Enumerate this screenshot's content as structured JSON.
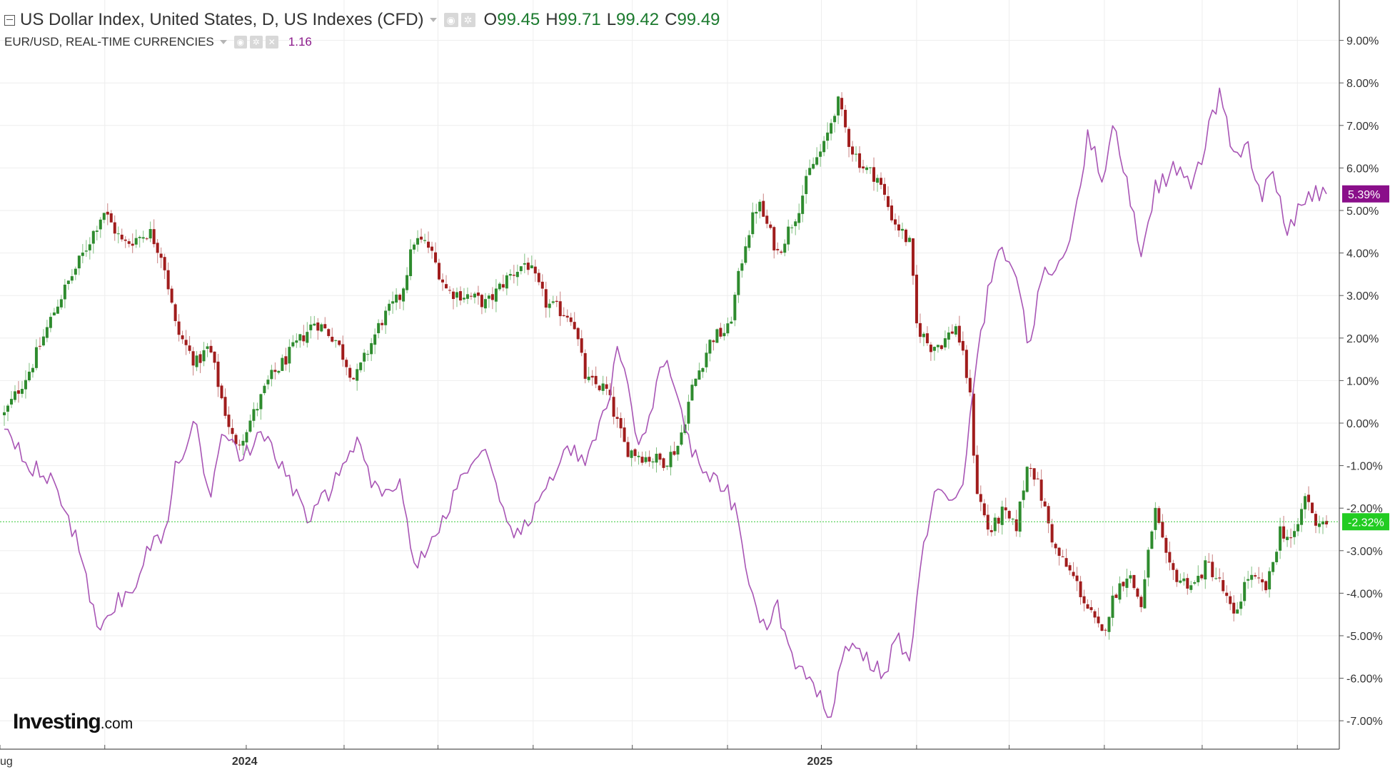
{
  "legend": {
    "main_title": "US Dollar Index, United States, D, US Indexes (CFD)",
    "ohlc": [
      {
        "key": "O",
        "value": "99.45"
      },
      {
        "key": "H",
        "value": "99.71"
      },
      {
        "key": "L",
        "value": "99.42"
      },
      {
        "key": "C",
        "value": "99.49"
      }
    ],
    "compare_title": "EUR/USD, REAL-TIME CURRENCIES",
    "compare_value": "1.16"
  },
  "logo": {
    "main": "Investing",
    "suffix": ".com"
  },
  "colors": {
    "up": "#2e8b2e",
    "down": "#a01c1c",
    "compare_line": "#a855b5",
    "grid": "#eeeeee",
    "current_line": "#39c939",
    "dxy_badge": "#22cc22",
    "eur_badge": "#8a0f8a",
    "axis_text": "#333333"
  },
  "chart_data": {
    "type": "candlestick+line",
    "y_axis": {
      "unit": "percent change",
      "ylim": [
        -7.5,
        9.5
      ],
      "ticks": [
        "9.00%",
        "8.00%",
        "7.00%",
        "6.00%",
        "5.00%",
        "4.00%",
        "3.00%",
        "2.00%",
        "1.00%",
        "0.00%",
        "-1.00%",
        "-2.00%",
        "-3.00%",
        "-4.00%",
        "-5.00%",
        "-6.00%",
        "-7.00%"
      ],
      "tick_values": [
        9,
        8,
        7,
        6,
        5,
        4,
        3,
        2,
        1,
        0,
        -1,
        -2,
        -3,
        -4,
        -5,
        -6,
        -7
      ]
    },
    "x_axis": {
      "labels": [
        {
          "text": "ug",
          "t": 0
        },
        {
          "text": "2024",
          "t": 0.183
        },
        {
          "text": "2025",
          "t": 0.618
        }
      ],
      "month_ticks": [
        0.076,
        0.257,
        0.328,
        0.4,
        0.475,
        0.547,
        0.618,
        0.69,
        0.76,
        0.832,
        0.906,
        0.978
      ]
    },
    "series": [
      {
        "name": "US Dollar Index, United States, D, US Indexes (CFD)",
        "style": "candlestick",
        "current_value_label": "-2.32%",
        "keypoints": [
          [
            0,
            0.2
          ],
          [
            0.02,
            1.3
          ],
          [
            0.04,
            2.8
          ],
          [
            0.06,
            4.0
          ],
          [
            0.075,
            5.0
          ],
          [
            0.09,
            4.2
          ],
          [
            0.11,
            4.5
          ],
          [
            0.12,
            3.9
          ],
          [
            0.13,
            2.2
          ],
          [
            0.145,
            1.4
          ],
          [
            0.155,
            1.8
          ],
          [
            0.165,
            0.5
          ],
          [
            0.175,
            -0.6
          ],
          [
            0.19,
            0.3
          ],
          [
            0.2,
            1.0
          ],
          [
            0.215,
            1.6
          ],
          [
            0.235,
            2.4
          ],
          [
            0.25,
            2.0
          ],
          [
            0.265,
            1.0
          ],
          [
            0.285,
            2.4
          ],
          [
            0.3,
            3.0
          ],
          [
            0.31,
            4.3
          ],
          [
            0.32,
            4.2
          ],
          [
            0.335,
            3.1
          ],
          [
            0.35,
            3.0
          ],
          [
            0.365,
            2.8
          ],
          [
            0.38,
            3.4
          ],
          [
            0.395,
            3.8
          ],
          [
            0.41,
            2.8
          ],
          [
            0.43,
            2.5
          ],
          [
            0.44,
            1.0
          ],
          [
            0.455,
            0.8
          ],
          [
            0.47,
            -0.6
          ],
          [
            0.485,
            -0.8
          ],
          [
            0.5,
            -0.9
          ],
          [
            0.51,
            -0.5
          ],
          [
            0.52,
            0.8
          ],
          [
            0.535,
            2.0
          ],
          [
            0.548,
            2.2
          ],
          [
            0.56,
            4.2
          ],
          [
            0.57,
            5.2
          ],
          [
            0.585,
            4.0
          ],
          [
            0.6,
            5.0
          ],
          [
            0.61,
            6.0
          ],
          [
            0.62,
            6.5
          ],
          [
            0.63,
            7.6
          ],
          [
            0.64,
            6.5
          ],
          [
            0.65,
            6.0
          ],
          [
            0.66,
            5.8
          ],
          [
            0.672,
            4.8
          ],
          [
            0.685,
            4.2
          ],
          [
            0.69,
            2.3
          ],
          [
            0.7,
            1.8
          ],
          [
            0.71,
            1.9
          ],
          [
            0.72,
            2.3
          ],
          [
            0.73,
            0.8
          ],
          [
            0.735,
            -1.5
          ],
          [
            0.745,
            -2.6
          ],
          [
            0.755,
            -2.1
          ],
          [
            0.765,
            -2.5
          ],
          [
            0.775,
            -0.8
          ],
          [
            0.785,
            -1.8
          ],
          [
            0.795,
            -3.0
          ],
          [
            0.81,
            -3.7
          ],
          [
            0.82,
            -4.4
          ],
          [
            0.83,
            -5.0
          ],
          [
            0.84,
            -4.0
          ],
          [
            0.85,
            -3.5
          ],
          [
            0.86,
            -4.3
          ],
          [
            0.87,
            -2.0
          ],
          [
            0.88,
            -3.4
          ],
          [
            0.89,
            -3.7
          ],
          [
            0.9,
            -3.8
          ],
          [
            0.91,
            -3.3
          ],
          [
            0.92,
            -3.8
          ],
          [
            0.93,
            -4.6
          ],
          [
            0.94,
            -3.6
          ],
          [
            0.955,
            -3.9
          ],
          [
            0.965,
            -2.5
          ],
          [
            0.975,
            -2.8
          ],
          [
            0.985,
            -1.6
          ],
          [
            0.99,
            -2.3
          ]
        ]
      },
      {
        "name": "EUR/USD, REAL-TIME CURRENCIES",
        "style": "line",
        "current_value_label": "5.39%",
        "keypoints": [
          [
            0,
            0.0
          ],
          [
            0.02,
            -1.0
          ],
          [
            0.04,
            -1.5
          ],
          [
            0.055,
            -2.8
          ],
          [
            0.07,
            -4.8
          ],
          [
            0.085,
            -4.2
          ],
          [
            0.1,
            -3.9
          ],
          [
            0.11,
            -2.8
          ],
          [
            0.12,
            -2.8
          ],
          [
            0.13,
            -1.0
          ],
          [
            0.145,
            0.0
          ],
          [
            0.155,
            -1.8
          ],
          [
            0.165,
            0.0
          ],
          [
            0.18,
            -0.8
          ],
          [
            0.195,
            -0.3
          ],
          [
            0.21,
            -1.0
          ],
          [
            0.23,
            -2.3
          ],
          [
            0.25,
            -1.4
          ],
          [
            0.265,
            -0.4
          ],
          [
            0.28,
            -1.5
          ],
          [
            0.3,
            -1.5
          ],
          [
            0.31,
            -3.3
          ],
          [
            0.325,
            -2.8
          ],
          [
            0.335,
            -2.0
          ],
          [
            0.35,
            -1.0
          ],
          [
            0.365,
            -0.8
          ],
          [
            0.38,
            -2.5
          ],
          [
            0.395,
            -2.5
          ],
          [
            0.41,
            -1.5
          ],
          [
            0.425,
            -0.5
          ],
          [
            0.44,
            -1.0
          ],
          [
            0.455,
            0.3
          ],
          [
            0.465,
            1.8
          ],
          [
            0.48,
            -0.5
          ],
          [
            0.49,
            0.4
          ],
          [
            0.5,
            1.7
          ],
          [
            0.515,
            -0.2
          ],
          [
            0.53,
            -1.3
          ],
          [
            0.545,
            -1.5
          ],
          [
            0.555,
            -2.3
          ],
          [
            0.565,
            -4.0
          ],
          [
            0.575,
            -4.9
          ],
          [
            0.585,
            -4.3
          ],
          [
            0.595,
            -5.5
          ],
          [
            0.605,
            -6.0
          ],
          [
            0.615,
            -6.4
          ],
          [
            0.625,
            -6.8
          ],
          [
            0.635,
            -5.3
          ],
          [
            0.645,
            -5.3
          ],
          [
            0.655,
            -5.6
          ],
          [
            0.665,
            -6.0
          ],
          [
            0.675,
            -5.0
          ],
          [
            0.685,
            -5.6
          ],
          [
            0.695,
            -3.0
          ],
          [
            0.705,
            -1.3
          ],
          [
            0.715,
            -2.0
          ],
          [
            0.725,
            -1.6
          ],
          [
            0.735,
            1.5
          ],
          [
            0.745,
            3.2
          ],
          [
            0.755,
            4.2
          ],
          [
            0.765,
            3.5
          ],
          [
            0.775,
            1.8
          ],
          [
            0.785,
            3.4
          ],
          [
            0.8,
            3.8
          ],
          [
            0.81,
            5.0
          ],
          [
            0.82,
            6.8
          ],
          [
            0.83,
            5.8
          ],
          [
            0.84,
            7.0
          ],
          [
            0.85,
            5.5
          ],
          [
            0.86,
            4.0
          ],
          [
            0.87,
            5.5
          ],
          [
            0.885,
            6.0
          ],
          [
            0.9,
            5.6
          ],
          [
            0.91,
            6.8
          ],
          [
            0.92,
            7.8
          ],
          [
            0.93,
            6.2
          ],
          [
            0.94,
            6.5
          ],
          [
            0.95,
            5.3
          ],
          [
            0.96,
            5.8
          ],
          [
            0.97,
            4.6
          ],
          [
            0.98,
            5.0
          ],
          [
            0.99,
            5.39
          ]
        ]
      }
    ],
    "current_lines": {
      "dxy": -2.32,
      "eur": 5.39
    },
    "grid": true,
    "legend_placement": "top-left"
  }
}
